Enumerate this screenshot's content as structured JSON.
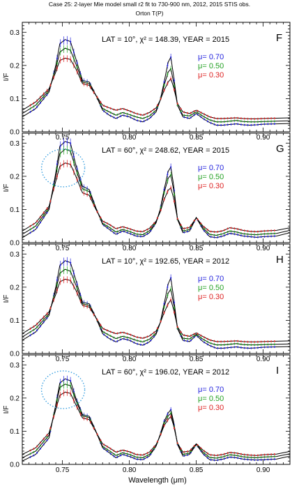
{
  "figure": {
    "title_line1": "Case 25: 2-layer Mie model small r2 fit to 730-900 nm, 2012, 2015 STIS obs.",
    "title_line2": "Orton T(P)",
    "xlabel": "Wavelength (μm)",
    "ylabel": "I/F"
  },
  "colors": {
    "mu_070": "#2222dd",
    "mu_050": "#22a022",
    "mu_030": "#dd2222",
    "model": "#000000",
    "circle": "#3aa0e0"
  },
  "chart_data": [
    {
      "type": "line",
      "panel_letter": "F",
      "lat": "10",
      "chi2": "148.39",
      "year": "2015",
      "info_text": "LAT = 10°, χ² = 148.39, YEAR = 2015",
      "xlabel": "",
      "ylabel": "I/F",
      "xlim": [
        0.72,
        0.92
      ],
      "ylim": [
        0,
        0.33
      ],
      "x_ticks": [
        "0.75",
        "0.80",
        "0.85",
        "0.90"
      ],
      "y_ticks": [
        "0.0",
        "0.1",
        "0.2",
        "0.3"
      ],
      "show_x_ticklabels": true,
      "circled_peak": false,
      "x": [
        0.72,
        0.73,
        0.74,
        0.745,
        0.748,
        0.752,
        0.756,
        0.76,
        0.765,
        0.77,
        0.775,
        0.78,
        0.785,
        0.79,
        0.795,
        0.8,
        0.805,
        0.81,
        0.815,
        0.82,
        0.823,
        0.826,
        0.829,
        0.831,
        0.833,
        0.836,
        0.84,
        0.845,
        0.85,
        0.855,
        0.86,
        0.865,
        0.87,
        0.875,
        0.88,
        0.885,
        0.89,
        0.895,
        0.9,
        0.91,
        0.92
      ],
      "legend": [
        "μ= 0.70",
        "μ= 0.50",
        "μ= 0.30"
      ],
      "series": [
        {
          "name": "μ= 0.70",
          "color": "#2222dd",
          "values": [
            0.045,
            0.07,
            0.12,
            0.2,
            0.265,
            0.278,
            0.272,
            0.22,
            0.155,
            0.15,
            0.11,
            0.065,
            0.05,
            0.04,
            0.05,
            0.045,
            0.035,
            0.03,
            0.04,
            0.06,
            0.095,
            0.15,
            0.21,
            0.225,
            0.17,
            0.08,
            0.045,
            0.04,
            0.055,
            0.04,
            0.028,
            0.02,
            0.02,
            0.022,
            0.024,
            0.021,
            0.02,
            0.021,
            0.023,
            0.024,
            0.025
          ]
        },
        {
          "name": "μ= 0.50",
          "color": "#22a022",
          "values": [
            0.055,
            0.08,
            0.125,
            0.19,
            0.24,
            0.252,
            0.246,
            0.205,
            0.15,
            0.145,
            0.11,
            0.07,
            0.06,
            0.05,
            0.058,
            0.052,
            0.045,
            0.04,
            0.048,
            0.065,
            0.095,
            0.14,
            0.18,
            0.19,
            0.15,
            0.08,
            0.05,
            0.048,
            0.06,
            0.047,
            0.036,
            0.03,
            0.03,
            0.032,
            0.034,
            0.031,
            0.03,
            0.03,
            0.031,
            0.032,
            0.033
          ]
        },
        {
          "name": "μ= 0.30",
          "color": "#dd2222",
          "values": [
            0.065,
            0.09,
            0.13,
            0.18,
            0.215,
            0.222,
            0.218,
            0.19,
            0.145,
            0.14,
            0.11,
            0.08,
            0.072,
            0.065,
            0.07,
            0.063,
            0.055,
            0.05,
            0.058,
            0.072,
            0.095,
            0.125,
            0.15,
            0.16,
            0.135,
            0.085,
            0.06,
            0.055,
            0.065,
            0.055,
            0.045,
            0.04,
            0.04,
            0.041,
            0.042,
            0.04,
            0.039,
            0.039,
            0.04,
            0.041,
            0.042
          ]
        }
      ]
    },
    {
      "type": "line",
      "panel_letter": "G",
      "lat": "60",
      "chi2": "248.62",
      "year": "2015",
      "info_text": "LAT = 60°, χ² = 248.62, YEAR = 2015",
      "xlabel": "",
      "ylabel": "I/F",
      "xlim": [
        0.72,
        0.92
      ],
      "ylim": [
        0,
        0.33
      ],
      "x_ticks": [
        "0.75",
        "0.80",
        "0.85",
        "0.90"
      ],
      "y_ticks": [
        "0.0",
        "0.1",
        "0.2",
        "0.3"
      ],
      "show_x_ticklabels": true,
      "circled_peak": true,
      "x": [
        0.72,
        0.73,
        0.74,
        0.745,
        0.748,
        0.752,
        0.756,
        0.76,
        0.765,
        0.77,
        0.775,
        0.78,
        0.785,
        0.79,
        0.795,
        0.8,
        0.805,
        0.81,
        0.815,
        0.82,
        0.823,
        0.826,
        0.829,
        0.831,
        0.833,
        0.836,
        0.84,
        0.845,
        0.85,
        0.855,
        0.86,
        0.865,
        0.87,
        0.875,
        0.88,
        0.885,
        0.89,
        0.895,
        0.9,
        0.91,
        0.92
      ],
      "legend": [
        "μ= 0.70",
        "μ= 0.50",
        "μ= 0.30"
      ],
      "series": [
        {
          "name": "μ= 0.70",
          "color": "#2222dd",
          "values": [
            0.015,
            0.04,
            0.1,
            0.21,
            0.29,
            0.305,
            0.3,
            0.235,
            0.17,
            0.16,
            0.105,
            0.055,
            0.04,
            0.025,
            0.035,
            0.028,
            0.02,
            0.018,
            0.03,
            0.06,
            0.1,
            0.16,
            0.215,
            0.228,
            0.175,
            0.07,
            0.03,
            0.035,
            0.075,
            0.04,
            0.018,
            0.015,
            0.02,
            0.028,
            0.025,
            0.02,
            0.018,
            0.016,
            0.018,
            0.02,
            0.03
          ]
        },
        {
          "name": "μ= 0.50",
          "color": "#22a022",
          "values": [
            0.025,
            0.05,
            0.105,
            0.2,
            0.268,
            0.282,
            0.276,
            0.222,
            0.162,
            0.154,
            0.103,
            0.058,
            0.046,
            0.032,
            0.04,
            0.034,
            0.026,
            0.024,
            0.036,
            0.062,
            0.098,
            0.15,
            0.194,
            0.204,
            0.16,
            0.07,
            0.035,
            0.04,
            0.076,
            0.045,
            0.025,
            0.022,
            0.027,
            0.035,
            0.032,
            0.027,
            0.025,
            0.024,
            0.026,
            0.028,
            0.037
          ]
        },
        {
          "name": "μ= 0.30",
          "color": "#dd2222",
          "values": [
            0.035,
            0.06,
            0.11,
            0.185,
            0.23,
            0.24,
            0.236,
            0.2,
            0.15,
            0.143,
            0.1,
            0.065,
            0.055,
            0.042,
            0.048,
            0.042,
            0.035,
            0.033,
            0.043,
            0.065,
            0.092,
            0.13,
            0.158,
            0.165,
            0.135,
            0.072,
            0.042,
            0.046,
            0.075,
            0.05,
            0.034,
            0.032,
            0.036,
            0.045,
            0.042,
            0.037,
            0.034,
            0.033,
            0.035,
            0.037,
            0.045
          ]
        }
      ]
    },
    {
      "type": "line",
      "panel_letter": "H",
      "lat": "10",
      "chi2": "192.65",
      "year": "2012",
      "info_text": "LAT = 10°, χ² = 192.65, YEAR = 2012",
      "xlabel": "",
      "ylabel": "I/F",
      "xlim": [
        0.72,
        0.92
      ],
      "ylim": [
        0,
        0.33
      ],
      "x_ticks": [
        "0.75",
        "0.80",
        "0.85",
        "0.90"
      ],
      "y_ticks": [
        "0.0",
        "0.1",
        "0.2",
        "0.3"
      ],
      "show_x_ticklabels": true,
      "circled_peak": false,
      "x": [
        0.72,
        0.73,
        0.74,
        0.745,
        0.748,
        0.752,
        0.756,
        0.76,
        0.765,
        0.77,
        0.775,
        0.78,
        0.785,
        0.79,
        0.795,
        0.8,
        0.805,
        0.81,
        0.815,
        0.82,
        0.823,
        0.826,
        0.829,
        0.831,
        0.833,
        0.836,
        0.84,
        0.845,
        0.85,
        0.855,
        0.86,
        0.865,
        0.87,
        0.875,
        0.88,
        0.885,
        0.89,
        0.895,
        0.9,
        0.91,
        0.92
      ],
      "legend": [
        "μ= 0.70",
        "μ= 0.50",
        "μ= 0.30"
      ],
      "series": [
        {
          "name": "μ= 0.70",
          "color": "#2222dd",
          "values": [
            0.04,
            0.065,
            0.115,
            0.2,
            0.265,
            0.28,
            0.274,
            0.222,
            0.155,
            0.15,
            0.108,
            0.06,
            0.045,
            0.035,
            0.045,
            0.04,
            0.03,
            0.025,
            0.035,
            0.058,
            0.092,
            0.15,
            0.21,
            0.228,
            0.17,
            0.075,
            0.04,
            0.036,
            0.055,
            0.036,
            0.024,
            0.016,
            0.016,
            0.018,
            0.02,
            0.017,
            0.016,
            0.017,
            0.019,
            0.02,
            0.021
          ]
        },
        {
          "name": "μ= 0.50",
          "color": "#22a022",
          "values": [
            0.05,
            0.075,
            0.12,
            0.19,
            0.242,
            0.254,
            0.248,
            0.207,
            0.15,
            0.145,
            0.108,
            0.066,
            0.055,
            0.045,
            0.052,
            0.047,
            0.04,
            0.035,
            0.043,
            0.062,
            0.092,
            0.14,
            0.182,
            0.194,
            0.15,
            0.076,
            0.046,
            0.044,
            0.058,
            0.043,
            0.032,
            0.026,
            0.026,
            0.028,
            0.03,
            0.027,
            0.026,
            0.026,
            0.027,
            0.028,
            0.029
          ]
        },
        {
          "name": "μ= 0.30",
          "color": "#dd2222",
          "values": [
            0.06,
            0.085,
            0.126,
            0.178,
            0.216,
            0.224,
            0.22,
            0.191,
            0.145,
            0.14,
            0.108,
            0.076,
            0.067,
            0.06,
            0.064,
            0.058,
            0.05,
            0.046,
            0.053,
            0.068,
            0.092,
            0.123,
            0.15,
            0.162,
            0.133,
            0.08,
            0.056,
            0.052,
            0.062,
            0.051,
            0.041,
            0.036,
            0.036,
            0.037,
            0.038,
            0.036,
            0.035,
            0.035,
            0.036,
            0.037,
            0.038
          ]
        }
      ]
    },
    {
      "type": "line",
      "panel_letter": "I",
      "lat": "60",
      "chi2": "196.02",
      "year": "2012",
      "info_text": "LAT = 60°, χ² = 196.02, YEAR = 2012",
      "xlabel": "Wavelength (μm)",
      "ylabel": "I/F",
      "xlim": [
        0.72,
        0.92
      ],
      "ylim": [
        0,
        0.33
      ],
      "x_ticks": [
        "0.75",
        "0.80",
        "0.85",
        "0.90"
      ],
      "y_ticks": [
        "0.0",
        "0.1",
        "0.2",
        "0.3"
      ],
      "show_x_ticklabels": true,
      "circled_peak": true,
      "x": [
        0.72,
        0.73,
        0.74,
        0.745,
        0.748,
        0.752,
        0.756,
        0.76,
        0.765,
        0.77,
        0.775,
        0.78,
        0.785,
        0.79,
        0.795,
        0.8,
        0.805,
        0.81,
        0.815,
        0.82,
        0.823,
        0.826,
        0.829,
        0.831,
        0.833,
        0.836,
        0.84,
        0.845,
        0.85,
        0.855,
        0.86,
        0.865,
        0.87,
        0.875,
        0.88,
        0.885,
        0.89,
        0.895,
        0.9,
        0.91,
        0.92
      ],
      "legend": [
        "μ= 0.70",
        "μ= 0.50",
        "μ= 0.30"
      ],
      "series": [
        {
          "name": "μ= 0.70",
          "color": "#2222dd",
          "values": [
            0.01,
            0.03,
            0.08,
            0.18,
            0.245,
            0.258,
            0.252,
            0.2,
            0.15,
            0.145,
            0.1,
            0.05,
            0.035,
            0.02,
            0.03,
            0.024,
            0.016,
            0.014,
            0.025,
            0.055,
            0.09,
            0.13,
            0.155,
            0.165,
            0.13,
            0.06,
            0.025,
            0.03,
            0.06,
            0.032,
            0.014,
            0.012,
            0.016,
            0.022,
            0.02,
            0.016,
            0.014,
            0.013,
            0.014,
            0.016,
            0.025
          ]
        },
        {
          "name": "μ= 0.50",
          "color": "#22a022",
          "values": [
            0.02,
            0.04,
            0.088,
            0.175,
            0.232,
            0.242,
            0.237,
            0.193,
            0.146,
            0.141,
            0.099,
            0.054,
            0.041,
            0.027,
            0.035,
            0.03,
            0.022,
            0.02,
            0.03,
            0.056,
            0.088,
            0.124,
            0.146,
            0.154,
            0.124,
            0.062,
            0.03,
            0.034,
            0.061,
            0.037,
            0.021,
            0.019,
            0.023,
            0.029,
            0.027,
            0.023,
            0.021,
            0.02,
            0.022,
            0.024,
            0.032
          ]
        },
        {
          "name": "μ= 0.30",
          "color": "#dd2222",
          "values": [
            0.03,
            0.05,
            0.095,
            0.165,
            0.208,
            0.218,
            0.214,
            0.18,
            0.14,
            0.135,
            0.098,
            0.062,
            0.05,
            0.037,
            0.043,
            0.038,
            0.03,
            0.028,
            0.037,
            0.06,
            0.086,
            0.117,
            0.136,
            0.144,
            0.118,
            0.064,
            0.037,
            0.04,
            0.062,
            0.043,
            0.029,
            0.027,
            0.03,
            0.036,
            0.034,
            0.03,
            0.028,
            0.027,
            0.029,
            0.031,
            0.039
          ]
        }
      ]
    }
  ]
}
